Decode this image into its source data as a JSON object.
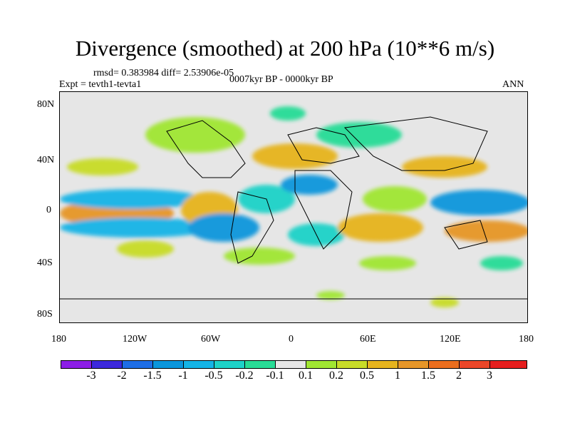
{
  "title": "Divergence (smoothed) at 200 hPa (10**6 m/s)",
  "stats": "rmsd= 0.383984 diff= 2.53906e-05",
  "experiment": "Expt = tevth1-tevta1",
  "period": "0007kyr BP - 0000kyr BP",
  "season": "ANN",
  "lat_ticks": [
    "80N",
    "40N",
    "0",
    "40S",
    "80S"
  ],
  "lon_ticks": [
    "180",
    "120W",
    "60W",
    "0",
    "60E",
    "120E",
    "180"
  ],
  "colorbar": {
    "labels": [
      "-3",
      "-2",
      "-1.5",
      "-1",
      "-0.5",
      "-0.2",
      "-0.1",
      "0.1",
      "0.2",
      "0.5",
      "1",
      "1.5",
      "2",
      "3"
    ],
    "colors": [
      "#8c1ee6",
      "#3c28dc",
      "#1e6ee6",
      "#0a96dc",
      "#14b4e6",
      "#1ed2c8",
      "#28dc96",
      "#e6e6e6",
      "#a0e632",
      "#c8dc28",
      "#e6b41e",
      "#e69628",
      "#eb6e1e",
      "#eb4628",
      "#e61e1e"
    ]
  }
}
